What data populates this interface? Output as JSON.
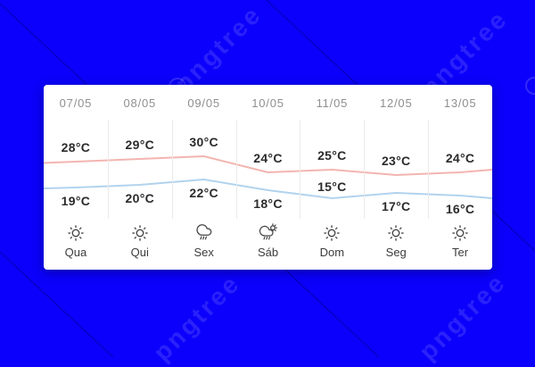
{
  "background_color": "#0b00fb",
  "watermark": {
    "text": "pngtree"
  },
  "forecast_card": {
    "columns": [
      {
        "date": "07/05",
        "high_label": "28°C",
        "low_label": "19°C",
        "icon": "sun",
        "day": "Qua"
      },
      {
        "date": "08/05",
        "high_label": "29°C",
        "low_label": "20°C",
        "icon": "sun",
        "day": "Qui"
      },
      {
        "date": "09/05",
        "high_label": "30°C",
        "low_label": "22°C",
        "icon": "rain",
        "day": "Sex"
      },
      {
        "date": "10/05",
        "high_label": "24°C",
        "low_label": "18°C",
        "icon": "sun-rain",
        "day": "Sáb"
      },
      {
        "date": "11/05",
        "high_label": "25°C",
        "low_label": "15°C",
        "icon": "sun",
        "day": "Dom"
      },
      {
        "date": "12/05",
        "high_label": "23°C",
        "low_label": "17°C",
        "icon": "sun",
        "day": "Seg"
      },
      {
        "date": "13/05",
        "high_label": "24°C",
        "low_label": "16°C",
        "icon": "sun",
        "day": "Ter"
      }
    ]
  },
  "chart_data": {
    "type": "line",
    "categories": [
      "07/05",
      "08/05",
      "09/05",
      "10/05",
      "11/05",
      "12/05",
      "13/05"
    ],
    "x_day_labels": [
      "Qua",
      "Qui",
      "Sex",
      "Sáb",
      "Dom",
      "Seg",
      "Ter"
    ],
    "icons": [
      "sun",
      "sun",
      "rain",
      "sun-rain",
      "sun",
      "sun",
      "sun"
    ],
    "series": [
      {
        "name": "high",
        "unit": "°C",
        "color": "#f3b5b0",
        "values": [
          28,
          29,
          30,
          24,
          25,
          23,
          24
        ],
        "labels": [
          "28°C",
          "29°C",
          "30°C",
          "24°C",
          "25°C",
          "23°C",
          "24°C"
        ],
        "label_positions": [
          "above",
          "above",
          "above",
          "above",
          "above",
          "above",
          "above"
        ]
      },
      {
        "name": "low",
        "unit": "°C",
        "color": "#b2d3ed",
        "values": [
          19,
          20,
          22,
          18,
          15,
          17,
          16
        ],
        "labels": [
          "19°C",
          "20°C",
          "22°C",
          "18°C",
          "15°C",
          "17°C",
          "16°C"
        ],
        "label_positions": [
          "below",
          "below",
          "below",
          "below",
          "above",
          "below",
          "below"
        ]
      }
    ],
    "legend": "none",
    "grid": "vertical-dividers-only"
  },
  "colors": {
    "card_background": "#ffffff",
    "date_text": "#8f8f8f",
    "temp_text": "#2b2b2b",
    "day_text": "#3c3c3c",
    "icon_stroke": "#484848",
    "divider": "#eaeaea",
    "high_line": "#f3b5b0",
    "low_line": "#b2d3ed"
  }
}
